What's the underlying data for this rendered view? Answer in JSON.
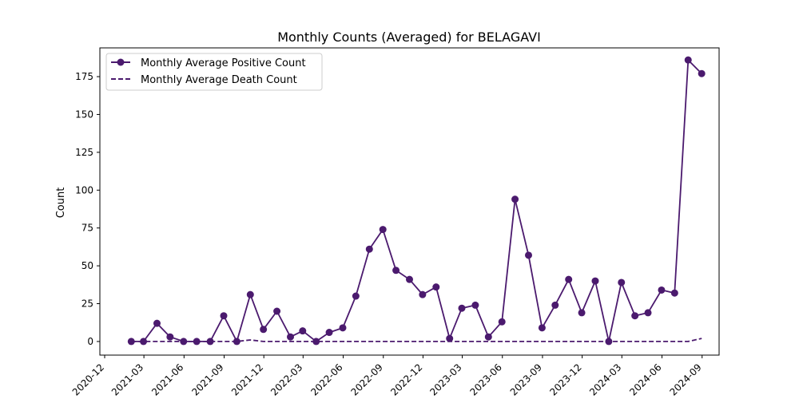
{
  "chart_data": {
    "type": "line",
    "title": "Monthly Counts (Averaged) for BELAGAVI",
    "xlabel": "",
    "ylabel": "Count",
    "ylim": [
      -9,
      194
    ],
    "xlim": [
      "2020-11-20",
      "2024-10-10"
    ],
    "grid": false,
    "legend_position": "top-left",
    "x_ticks": [
      "2020-12",
      "2021-03",
      "2021-06",
      "2021-09",
      "2021-12",
      "2022-03",
      "2022-06",
      "2022-09",
      "2022-12",
      "2023-03",
      "2023-06",
      "2023-09",
      "2023-12",
      "2024-03",
      "2024-06",
      "2024-09"
    ],
    "y_ticks": [
      0,
      25,
      50,
      75,
      100,
      125,
      150,
      175
    ],
    "x": [
      "2021-01-31",
      "2021-02-28",
      "2021-03-31",
      "2021-04-30",
      "2021-05-31",
      "2021-06-30",
      "2021-07-31",
      "2021-08-31",
      "2021-09-30",
      "2021-10-31",
      "2021-11-30",
      "2021-12-31",
      "2022-01-31",
      "2022-02-28",
      "2022-03-31",
      "2022-04-30",
      "2022-05-31",
      "2022-06-30",
      "2022-07-31",
      "2022-08-31",
      "2022-09-30",
      "2022-10-31",
      "2022-11-30",
      "2022-12-31",
      "2023-01-31",
      "2023-02-28",
      "2023-03-31",
      "2023-04-30",
      "2023-05-31",
      "2023-06-30",
      "2023-07-31",
      "2023-08-31",
      "2023-09-30",
      "2023-10-31",
      "2023-11-30",
      "2023-12-31",
      "2024-01-31",
      "2024-02-29",
      "2024-03-31",
      "2024-04-30",
      "2024-05-31",
      "2024-06-30",
      "2024-07-31",
      "2024-08-31"
    ],
    "series": [
      {
        "name": "Monthly Average Positive Count",
        "style": "solid-marker",
        "color": "#4b1a6e",
        "values": [
          0,
          0,
          12,
          3,
          0,
          0,
          0,
          17,
          0,
          31,
          8,
          20,
          3,
          7,
          0,
          6,
          9,
          30,
          61,
          74,
          47,
          41,
          31,
          36,
          2,
          22,
          24,
          3,
          13,
          94,
          57,
          9,
          24,
          41,
          19,
          40,
          0,
          39,
          17,
          19,
          34,
          32,
          186,
          177
        ]
      },
      {
        "name": "Monthly Average Death Count",
        "style": "dashed",
        "color": "#4b1a6e",
        "values": [
          0,
          0,
          0,
          0,
          0,
          0,
          0,
          0,
          0,
          1,
          0,
          0,
          0,
          0,
          0,
          0,
          0,
          0,
          0,
          0,
          0,
          0,
          0,
          0,
          0,
          0,
          0,
          0,
          0,
          0,
          0,
          0,
          0,
          0,
          0,
          0,
          0,
          0,
          0,
          0,
          0,
          0,
          0,
          2
        ]
      }
    ]
  }
}
